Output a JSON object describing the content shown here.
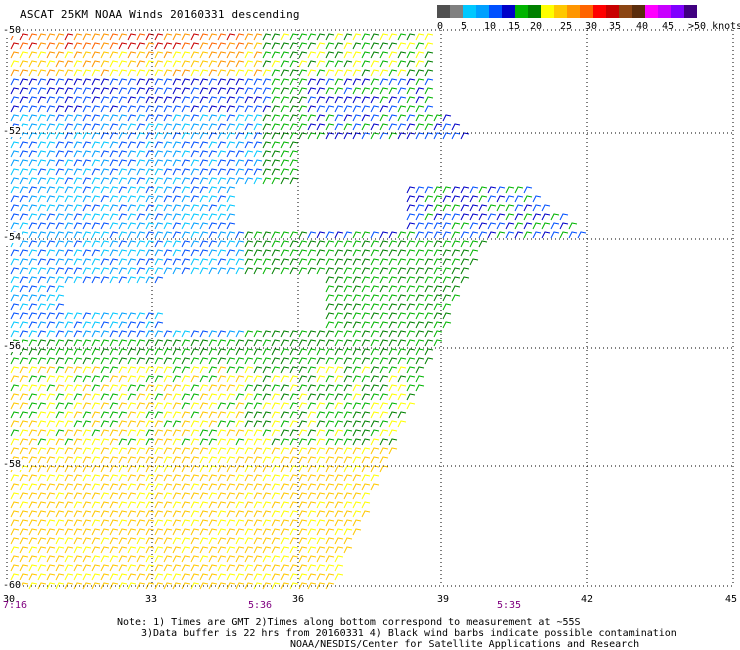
{
  "title": "ASCAT 25KM NOAA Winds 20160331 descending",
  "legend": {
    "labels": [
      "0",
      "5",
      "10",
      "15",
      "20",
      "25",
      "30",
      "35",
      "40",
      "45",
      ">50 knots"
    ],
    "colors": [
      "#505050",
      "#808080",
      "#00c8ff",
      "#00a0ff",
      "#0050ff",
      "#0000c8",
      "#00b400",
      "#008000",
      "#ffff00",
      "#ffc800",
      "#ff9600",
      "#ff6400",
      "#ff0000",
      "#c80000",
      "#8b4513",
      "#5a2d0c",
      "#ff00ff",
      "#c800ff",
      "#8000ff",
      "#400080"
    ]
  },
  "map": {
    "lon_range": [
      30,
      45
    ],
    "lat_range": [
      -50,
      -60
    ],
    "lon_ticks": [
      "30",
      "33",
      "36",
      "39",
      "42",
      "45"
    ],
    "lat_ticks": [
      "-50",
      "-52",
      "-54",
      "-56",
      "-58",
      "-60"
    ],
    "grid": true
  },
  "time_labels": [
    "7:16",
    "5:36",
    "5:35"
  ],
  "notes": [
    "Note: 1) Times are GMT 2)Times along bottom correspond to measurement at ~55S",
    "3)Data buffer is 22 hrs from 20160331 4) Black wind barbs indicate possible contamination",
    "NOAA/NESDIS/Center for Satellite Applications and Research"
  ]
}
